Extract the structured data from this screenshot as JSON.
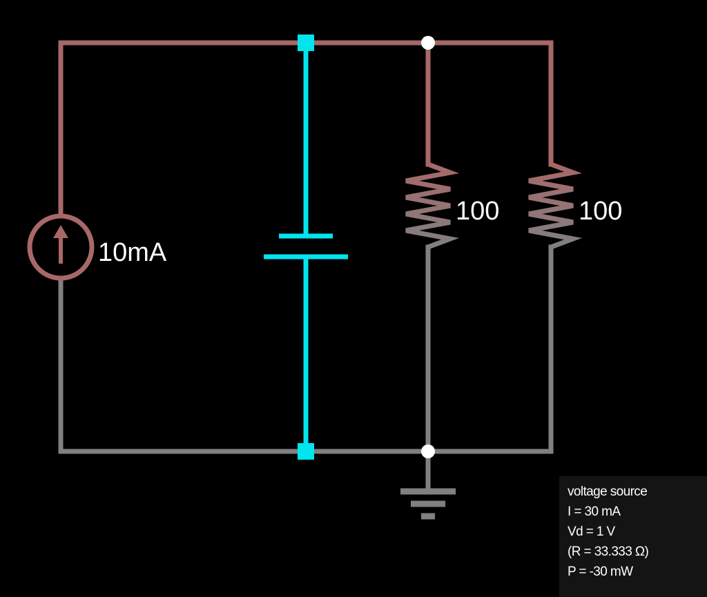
{
  "colors": {
    "background": "#000000",
    "wire_positive": "#a86868",
    "wire_ground": "#808080",
    "selected": "#00e5ee",
    "node": "#ffffff",
    "panel_bg": "#141414"
  },
  "circuit": {
    "current_source": {
      "label": "10mA",
      "icon": "arrow-up-icon"
    },
    "capacitor": {
      "selected": true
    },
    "resistors": [
      {
        "label": "100"
      },
      {
        "label": "100"
      }
    ],
    "ground": {
      "icon": "ground-icon"
    }
  },
  "info_panel": {
    "title": "voltage source",
    "current": "I = 30 mA",
    "voltage": "Vd = 1 V",
    "resistance": "(R = 33.333 Ω)",
    "power": "P = -30 mW"
  }
}
